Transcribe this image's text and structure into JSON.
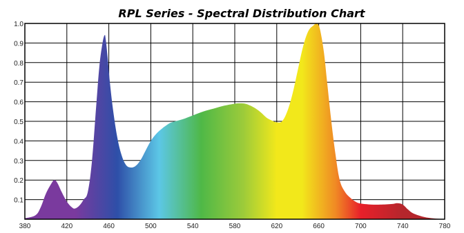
{
  "chart_data": {
    "type": "area",
    "title": "RPL Series - Spectral Distribution Chart",
    "xlabel": "",
    "ylabel": "",
    "xlim": [
      380,
      780
    ],
    "ylim": [
      0,
      1.0
    ],
    "grid": true,
    "x_ticks": [
      380,
      420,
      460,
      500,
      540,
      580,
      620,
      660,
      700,
      740,
      780
    ],
    "y_ticks": [
      0.1,
      0.2,
      0.3,
      0.4,
      0.5,
      0.6,
      0.7,
      0.8,
      0.9,
      1.0
    ],
    "x_tick_labels": [
      "380",
      "420",
      "460",
      "500",
      "540",
      "580",
      "620",
      "660",
      "700",
      "740",
      "780"
    ],
    "y_tick_labels": [
      "0.1",
      "0.2",
      "0.3",
      "0.4",
      "0.5",
      "0.6",
      "0.7",
      "0.8",
      "0.9",
      "1.0"
    ],
    "series": [
      {
        "x": [
          380,
          390,
          395,
          400,
          405,
          408,
          411,
          415,
          420,
          425,
          428,
          432,
          436,
          440,
          444,
          448,
          451,
          454,
          456,
          457,
          459,
          461,
          464,
          468,
          472,
          476,
          480,
          485,
          490,
          495,
          500,
          505,
          510,
          515,
          520,
          530,
          540,
          550,
          560,
          570,
          580,
          585,
          590,
          595,
          600,
          605,
          610,
          615,
          620,
          625,
          630,
          635,
          640,
          645,
          650,
          655,
          658,
          660,
          662,
          665,
          668,
          672,
          676,
          680,
          685,
          690,
          695,
          700,
          710,
          720,
          730,
          735,
          740,
          745,
          750,
          760,
          770,
          780
        ],
        "values": [
          0.005,
          0.02,
          0.06,
          0.13,
          0.18,
          0.2,
          0.185,
          0.14,
          0.09,
          0.06,
          0.055,
          0.07,
          0.1,
          0.14,
          0.3,
          0.58,
          0.78,
          0.9,
          0.94,
          0.92,
          0.82,
          0.7,
          0.56,
          0.42,
          0.33,
          0.28,
          0.265,
          0.27,
          0.3,
          0.35,
          0.4,
          0.435,
          0.46,
          0.48,
          0.495,
          0.51,
          0.53,
          0.55,
          0.565,
          0.58,
          0.59,
          0.592,
          0.59,
          0.58,
          0.565,
          0.545,
          0.52,
          0.505,
          0.495,
          0.5,
          0.55,
          0.64,
          0.76,
          0.88,
          0.96,
          0.99,
          1.0,
          0.99,
          0.95,
          0.85,
          0.7,
          0.5,
          0.33,
          0.2,
          0.14,
          0.11,
          0.09,
          0.08,
          0.075,
          0.075,
          0.078,
          0.082,
          0.075,
          0.05,
          0.03,
          0.012,
          0.004,
          0.0
        ]
      }
    ],
    "colors": {
      "violet": "#7a3a9e",
      "blue": "#2e4fa8",
      "cyan": "#5cc7e6",
      "green": "#4fb847",
      "yellow": "#f2e81b",
      "orange": "#f08a24",
      "red": "#e8202a",
      "dark_red": "#b5262c",
      "grid": "#000000",
      "background": "#ffffff"
    }
  }
}
